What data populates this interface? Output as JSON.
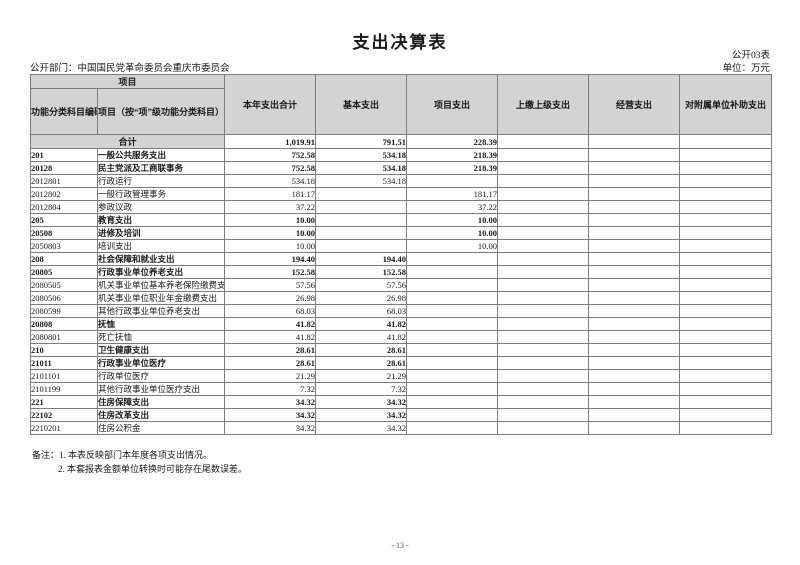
{
  "page": {
    "title": "支出决算表",
    "form_code": "公开03表",
    "department_label": "公开部门：",
    "department_name": "中国国民党革命委员会重庆市委员会",
    "unit_label": "单位：万元",
    "page_number": "- 13 -"
  },
  "table": {
    "header": {
      "group_label": "项目",
      "code_label": "功能分类科目编码",
      "item_label": "项目（按“项”级功能分类科目）",
      "cols": [
        "本年支出合计",
        "基本支出",
        "项目支出",
        "上缴上级支出",
        "经营支出",
        "对附属单位补助支出"
      ]
    },
    "total_row": {
      "label": "合计",
      "values": [
        "1,019.91",
        "791.51",
        "228.39",
        "",
        "",
        ""
      ]
    },
    "rows": [
      {
        "code": "201",
        "item": "一般公共服务支出",
        "bold": true,
        "values": [
          "752.58",
          "534.18",
          "218.39",
          "",
          "",
          ""
        ]
      },
      {
        "code": "20128",
        "item": "民主党派及工商联事务",
        "bold": true,
        "values": [
          "752.58",
          "534.18",
          "218.39",
          "",
          "",
          ""
        ]
      },
      {
        "code": "2012801",
        "item": "行政运行",
        "bold": false,
        "values": [
          "534.18",
          "534.18",
          "",
          "",
          "",
          ""
        ]
      },
      {
        "code": "2012802",
        "item": "一般行政管理事务",
        "bold": false,
        "values": [
          "181.17",
          "",
          "181.17",
          "",
          "",
          ""
        ]
      },
      {
        "code": "2012804",
        "item": "参政议政",
        "bold": false,
        "values": [
          "37.22",
          "",
          "37.22",
          "",
          "",
          ""
        ]
      },
      {
        "code": "205",
        "item": "教育支出",
        "bold": true,
        "values": [
          "10.00",
          "",
          "10.00",
          "",
          "",
          ""
        ]
      },
      {
        "code": "20508",
        "item": "进修及培训",
        "bold": true,
        "values": [
          "10.00",
          "",
          "10.00",
          "",
          "",
          ""
        ]
      },
      {
        "code": "2050803",
        "item": "培训支出",
        "bold": false,
        "values": [
          "10.00",
          "",
          "10.00",
          "",
          "",
          ""
        ]
      },
      {
        "code": "208",
        "item": "社会保障和就业支出",
        "bold": true,
        "values": [
          "194.40",
          "194.40",
          "",
          "",
          "",
          ""
        ]
      },
      {
        "code": "20805",
        "item": "行政事业单位养老支出",
        "bold": true,
        "values": [
          "152.58",
          "152.58",
          "",
          "",
          "",
          ""
        ]
      },
      {
        "code": "2080505",
        "item": "机关事业单位基本养老保险缴费支出",
        "bold": false,
        "values": [
          "57.56",
          "57.56",
          "",
          "",
          "",
          ""
        ]
      },
      {
        "code": "2080506",
        "item": "机关事业单位职业年金缴费支出",
        "bold": false,
        "values": [
          "26.98",
          "26.98",
          "",
          "",
          "",
          ""
        ]
      },
      {
        "code": "2080599",
        "item": "其他行政事业单位养老支出",
        "bold": false,
        "values": [
          "68.03",
          "68.03",
          "",
          "",
          "",
          ""
        ]
      },
      {
        "code": "20808",
        "item": "抚恤",
        "bold": true,
        "values": [
          "41.82",
          "41.82",
          "",
          "",
          "",
          ""
        ]
      },
      {
        "code": "2080801",
        "item": "死亡抚恤",
        "bold": false,
        "values": [
          "41.82",
          "41.82",
          "",
          "",
          "",
          ""
        ]
      },
      {
        "code": "210",
        "item": "卫生健康支出",
        "bold": true,
        "values": [
          "28.61",
          "28.61",
          "",
          "",
          "",
          ""
        ]
      },
      {
        "code": "21011",
        "item": "行政事业单位医疗",
        "bold": true,
        "values": [
          "28.61",
          "28.61",
          "",
          "",
          "",
          ""
        ]
      },
      {
        "code": "2101101",
        "item": "行政单位医疗",
        "bold": false,
        "values": [
          "21.29",
          "21.29",
          "",
          "",
          "",
          ""
        ]
      },
      {
        "code": "2101199",
        "item": "其他行政事业单位医疗支出",
        "bold": false,
        "values": [
          "7.32",
          "7.32",
          "",
          "",
          "",
          ""
        ]
      },
      {
        "code": "221",
        "item": "住房保障支出",
        "bold": true,
        "values": [
          "34.32",
          "34.32",
          "",
          "",
          "",
          ""
        ]
      },
      {
        "code": "22102",
        "item": "住房改革支出",
        "bold": true,
        "values": [
          "34.32",
          "34.32",
          "",
          "",
          "",
          ""
        ]
      },
      {
        "code": "2210201",
        "item": "住房公积金",
        "bold": false,
        "values": [
          "34.32",
          "34.32",
          "",
          "",
          "",
          ""
        ]
      }
    ]
  },
  "notes": {
    "label": "备注：",
    "line1": "1. 本表反映部门本年度各项支出情况。",
    "line2": "2. 本套报表金额单位转换时可能存在尾数误差。"
  },
  "colors": {
    "header_bg": "#d3d3d3",
    "border": "#7d7d7d"
  }
}
